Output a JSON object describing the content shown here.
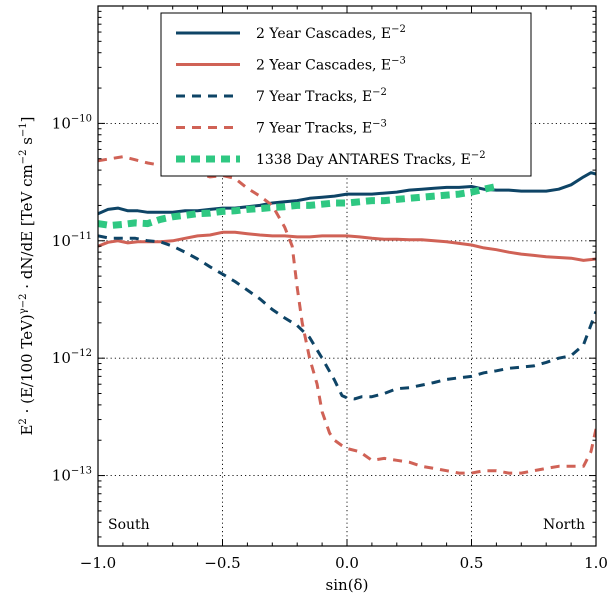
{
  "chart_data": {
    "type": "line",
    "xlabel": "sin(δ)",
    "ylabel_parts": [
      "E",
      "2",
      " · (E/100 TeV)",
      "γ−2",
      " · dN/dE  [TeV cm",
      "−2",
      " s",
      "−1",
      "]"
    ],
    "xlim": [
      -1.0,
      1.0
    ],
    "ylim_log10": [
      -13.6,
      -9.0
    ],
    "yscale": "log",
    "grid": true,
    "legend_position": "top-center",
    "x_ticks": [
      {
        "value": -1.0,
        "label": "−1.0"
      },
      {
        "value": -0.5,
        "label": "−0.5"
      },
      {
        "value": 0.0,
        "label": "0.0"
      },
      {
        "value": 0.5,
        "label": "0.5"
      },
      {
        "value": 1.0,
        "label": "1.0"
      }
    ],
    "y_ticks": [
      {
        "exp": -10,
        "base": "10",
        "sup": "−10"
      },
      {
        "exp": -11,
        "base": "10",
        "sup": "−11"
      },
      {
        "exp": -12,
        "base": "10",
        "sup": "−12"
      },
      {
        "exp": -13,
        "base": "10",
        "sup": "−13"
      }
    ],
    "annotations": {
      "south": "South",
      "north": "North"
    },
    "series": [
      {
        "name": "2 Year Cascades, E",
        "name_sup": "−2",
        "color": "#0e4466",
        "style": "solid",
        "points": [
          [
            -1.0,
            1.7e-11
          ],
          [
            -0.96,
            1.85e-11
          ],
          [
            -0.92,
            1.9e-11
          ],
          [
            -0.88,
            1.8e-11
          ],
          [
            -0.84,
            1.8e-11
          ],
          [
            -0.8,
            1.75e-11
          ],
          [
            -0.75,
            1.75e-11
          ],
          [
            -0.7,
            1.75e-11
          ],
          [
            -0.65,
            1.8e-11
          ],
          [
            -0.6,
            1.8e-11
          ],
          [
            -0.55,
            1.85e-11
          ],
          [
            -0.5,
            1.9e-11
          ],
          [
            -0.45,
            1.9e-11
          ],
          [
            -0.4,
            1.95e-11
          ],
          [
            -0.35,
            2e-11
          ],
          [
            -0.3,
            2.1e-11
          ],
          [
            -0.25,
            2.15e-11
          ],
          [
            -0.2,
            2.2e-11
          ],
          [
            -0.15,
            2.3e-11
          ],
          [
            -0.1,
            2.35e-11
          ],
          [
            -0.05,
            2.4e-11
          ],
          [
            0.0,
            2.5e-11
          ],
          [
            0.05,
            2.5e-11
          ],
          [
            0.1,
            2.5e-11
          ],
          [
            0.15,
            2.55e-11
          ],
          [
            0.2,
            2.6e-11
          ],
          [
            0.25,
            2.7e-11
          ],
          [
            0.3,
            2.75e-11
          ],
          [
            0.35,
            2.8e-11
          ],
          [
            0.4,
            2.85e-11
          ],
          [
            0.45,
            2.85e-11
          ],
          [
            0.5,
            2.9e-11
          ],
          [
            0.55,
            2.75e-11
          ],
          [
            0.6,
            2.7e-11
          ],
          [
            0.65,
            2.7e-11
          ],
          [
            0.7,
            2.65e-11
          ],
          [
            0.75,
            2.65e-11
          ],
          [
            0.8,
            2.65e-11
          ],
          [
            0.85,
            2.75e-11
          ],
          [
            0.9,
            3e-11
          ],
          [
            0.95,
            3.5e-11
          ],
          [
            0.98,
            3.8e-11
          ],
          [
            1.0,
            3.7e-11
          ]
        ]
      },
      {
        "name": "2 Year Cascades, E",
        "name_sup": "−3",
        "color": "#d06256",
        "style": "solid",
        "points": [
          [
            -1.0,
            9e-12
          ],
          [
            -0.96,
            9.7e-12
          ],
          [
            -0.92,
            1e-11
          ],
          [
            -0.88,
            9.6e-12
          ],
          [
            -0.84,
            9.8e-12
          ],
          [
            -0.8,
            9.8e-12
          ],
          [
            -0.75,
            9.8e-12
          ],
          [
            -0.7,
            1e-11
          ],
          [
            -0.65,
            1.05e-11
          ],
          [
            -0.6,
            1.1e-11
          ],
          [
            -0.55,
            1.12e-11
          ],
          [
            -0.5,
            1.18e-11
          ],
          [
            -0.45,
            1.18e-11
          ],
          [
            -0.4,
            1.15e-11
          ],
          [
            -0.35,
            1.12e-11
          ],
          [
            -0.3,
            1.1e-11
          ],
          [
            -0.25,
            1.1e-11
          ],
          [
            -0.2,
            1.08e-11
          ],
          [
            -0.15,
            1.08e-11
          ],
          [
            -0.1,
            1.1e-11
          ],
          [
            -0.05,
            1.1e-11
          ],
          [
            0.0,
            1.1e-11
          ],
          [
            0.05,
            1.08e-11
          ],
          [
            0.1,
            1.05e-11
          ],
          [
            0.15,
            1.03e-11
          ],
          [
            0.2,
            1.03e-11
          ],
          [
            0.25,
            1.02e-11
          ],
          [
            0.3,
            1.02e-11
          ],
          [
            0.35,
            1e-11
          ],
          [
            0.4,
            9.8e-12
          ],
          [
            0.45,
            9.5e-12
          ],
          [
            0.5,
            9.2e-12
          ],
          [
            0.55,
            8.7e-12
          ],
          [
            0.6,
            8.4e-12
          ],
          [
            0.65,
            8e-12
          ],
          [
            0.7,
            7.7e-12
          ],
          [
            0.75,
            7.5e-12
          ],
          [
            0.8,
            7.3e-12
          ],
          [
            0.85,
            7.2e-12
          ],
          [
            0.9,
            7.1e-12
          ],
          [
            0.95,
            6.8e-12
          ],
          [
            1.0,
            7e-12
          ]
        ]
      },
      {
        "name": "7 Year Tracks, E",
        "name_sup": "−2",
        "color": "#0e4466",
        "style": "dashed",
        "points": [
          [
            -1.0,
            1.1e-11
          ],
          [
            -0.95,
            1.05e-11
          ],
          [
            -0.9,
            1.05e-11
          ],
          [
            -0.85,
            1.05e-11
          ],
          [
            -0.8,
            1e-11
          ],
          [
            -0.75,
            9.8e-12
          ],
          [
            -0.7,
            9e-12
          ],
          [
            -0.65,
            8e-12
          ],
          [
            -0.6,
            7e-12
          ],
          [
            -0.55,
            6e-12
          ],
          [
            -0.5,
            5.2e-12
          ],
          [
            -0.45,
            4.5e-12
          ],
          [
            -0.4,
            3.8e-12
          ],
          [
            -0.35,
            3.2e-12
          ],
          [
            -0.3,
            2.6e-12
          ],
          [
            -0.25,
            2.2e-12
          ],
          [
            -0.2,
            1.9e-12
          ],
          [
            -0.15,
            1.5e-12
          ],
          [
            -0.1,
            1e-12
          ],
          [
            -0.05,
            6.5e-13
          ],
          [
            -0.02,
            4.8e-13
          ],
          [
            0.0,
            4.6e-13
          ],
          [
            0.03,
            4.5e-13
          ],
          [
            0.06,
            4.7e-13
          ],
          [
            0.1,
            4.7e-13
          ],
          [
            0.15,
            5e-13
          ],
          [
            0.2,
            5.5e-13
          ],
          [
            0.25,
            5.6e-13
          ],
          [
            0.3,
            5.9e-13
          ],
          [
            0.35,
            6.2e-13
          ],
          [
            0.4,
            6.6e-13
          ],
          [
            0.45,
            6.8e-13
          ],
          [
            0.5,
            7e-13
          ],
          [
            0.55,
            7.5e-13
          ],
          [
            0.6,
            7.8e-13
          ],
          [
            0.65,
            8.2e-13
          ],
          [
            0.7,
            8.4e-13
          ],
          [
            0.75,
            8.6e-13
          ],
          [
            0.8,
            9.2e-13
          ],
          [
            0.85,
            1e-12
          ],
          [
            0.9,
            1.05e-12
          ],
          [
            0.95,
            1.3e-12
          ],
          [
            1.0,
            2.5e-12
          ]
        ]
      },
      {
        "name": "7 Year Tracks, E",
        "name_sup": "−3",
        "color": "#d06256",
        "style": "dashed",
        "points": [
          [
            -1.0,
            4.8e-11
          ],
          [
            -0.95,
            5e-11
          ],
          [
            -0.9,
            5.2e-11
          ],
          [
            -0.85,
            4.9e-11
          ],
          [
            -0.8,
            4.6e-11
          ],
          [
            -0.75,
            4.4e-11
          ],
          [
            -0.7,
            4.2e-11
          ],
          [
            -0.65,
            4e-11
          ],
          [
            -0.6,
            3.8e-11
          ],
          [
            -0.55,
            3.5e-11
          ],
          [
            -0.5,
            3.6e-11
          ],
          [
            -0.45,
            3.4e-11
          ],
          [
            -0.4,
            2.8e-11
          ],
          [
            -0.35,
            2.4e-11
          ],
          [
            -0.3,
            2e-11
          ],
          [
            -0.25,
            1.3e-11
          ],
          [
            -0.22,
            9e-12
          ],
          [
            -0.2,
            4e-12
          ],
          [
            -0.18,
            2e-12
          ],
          [
            -0.15,
            1e-12
          ],
          [
            -0.12,
            6e-13
          ],
          [
            -0.1,
            3.5e-13
          ],
          [
            -0.07,
            2.3e-13
          ],
          [
            -0.05,
            2e-13
          ],
          [
            -0.02,
            1.8e-13
          ],
          [
            0.0,
            1.7e-13
          ],
          [
            0.05,
            1.6e-13
          ],
          [
            0.1,
            1.35e-13
          ],
          [
            0.15,
            1.4e-13
          ],
          [
            0.2,
            1.35e-13
          ],
          [
            0.25,
            1.3e-13
          ],
          [
            0.3,
            1.2e-13
          ],
          [
            0.35,
            1.15e-13
          ],
          [
            0.4,
            1.1e-13
          ],
          [
            0.45,
            1.05e-13
          ],
          [
            0.5,
            1.05e-13
          ],
          [
            0.55,
            1.1e-13
          ],
          [
            0.6,
            1.1e-13
          ],
          [
            0.65,
            1.05e-13
          ],
          [
            0.7,
            1.05e-13
          ],
          [
            0.75,
            1.1e-13
          ],
          [
            0.8,
            1.15e-13
          ],
          [
            0.85,
            1.2e-13
          ],
          [
            0.9,
            1.2e-13
          ],
          [
            0.95,
            1.2e-13
          ],
          [
            0.98,
            1.6e-13
          ],
          [
            1.0,
            2.5e-13
          ]
        ]
      },
      {
        "name": "1338 Day ANTARES Tracks, E",
        "name_sup": "−2",
        "color": "#2fc882",
        "style": "thick-dashed",
        "points": [
          [
            -1.0,
            1.4e-11
          ],
          [
            -0.95,
            1.35e-11
          ],
          [
            -0.9,
            1.38e-11
          ],
          [
            -0.85,
            1.42e-11
          ],
          [
            -0.8,
            1.4e-11
          ],
          [
            -0.75,
            1.52e-11
          ],
          [
            -0.7,
            1.6e-11
          ],
          [
            -0.65,
            1.65e-11
          ],
          [
            -0.6,
            1.7e-11
          ],
          [
            -0.55,
            1.72e-11
          ],
          [
            -0.5,
            1.78e-11
          ],
          [
            -0.45,
            1.8e-11
          ],
          [
            -0.4,
            1.85e-11
          ],
          [
            -0.35,
            1.88e-11
          ],
          [
            -0.3,
            1.92e-11
          ],
          [
            -0.25,
            1.95e-11
          ],
          [
            -0.2,
            2e-11
          ],
          [
            -0.15,
            2e-11
          ],
          [
            -0.1,
            2.05e-11
          ],
          [
            -0.05,
            2.1e-11
          ],
          [
            0.0,
            2.1e-11
          ],
          [
            0.05,
            2.15e-11
          ],
          [
            0.1,
            2.2e-11
          ],
          [
            0.15,
            2.2e-11
          ],
          [
            0.2,
            2.25e-11
          ],
          [
            0.25,
            2.3e-11
          ],
          [
            0.3,
            2.35e-11
          ],
          [
            0.35,
            2.4e-11
          ],
          [
            0.4,
            2.45e-11
          ],
          [
            0.45,
            2.5e-11
          ],
          [
            0.5,
            2.6e-11
          ],
          [
            0.55,
            2.75e-11
          ],
          [
            0.6,
            2.9e-11
          ]
        ]
      }
    ]
  }
}
